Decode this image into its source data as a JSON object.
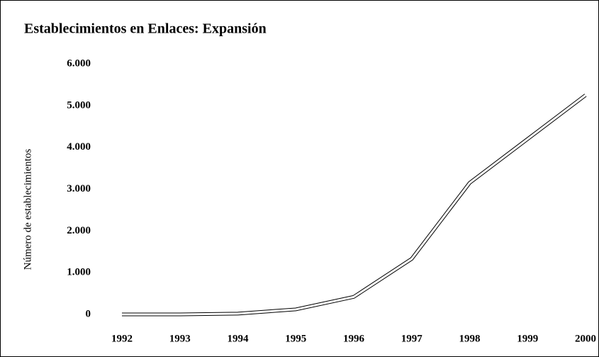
{
  "chart_data": {
    "type": "line",
    "title": "Establecimientos en Enlaces: Expansión",
    "y_label": "Número de establecimientos",
    "categories": [
      "1992",
      "1993",
      "1994",
      "1995",
      "1996",
      "1997",
      "1998",
      "1999",
      "2000"
    ],
    "series": [
      {
        "name": "Establecimientos",
        "color": "#000000",
        "values": [
          0,
          0,
          20,
          120,
          420,
          1330,
          3150,
          4200,
          5250
        ]
      }
    ],
    "ylim": [
      0,
      6000
    ],
    "yticks": [
      {
        "value": 0,
        "label": "0"
      },
      {
        "value": 1000,
        "label": "1.000"
      },
      {
        "value": 2000,
        "label": "2.000"
      },
      {
        "value": 3000,
        "label": "3.000"
      },
      {
        "value": 4000,
        "label": "4.000"
      },
      {
        "value": 5000,
        "label": "5.000"
      },
      {
        "value": 6000,
        "label": "6.000"
      }
    ],
    "grid": false
  }
}
